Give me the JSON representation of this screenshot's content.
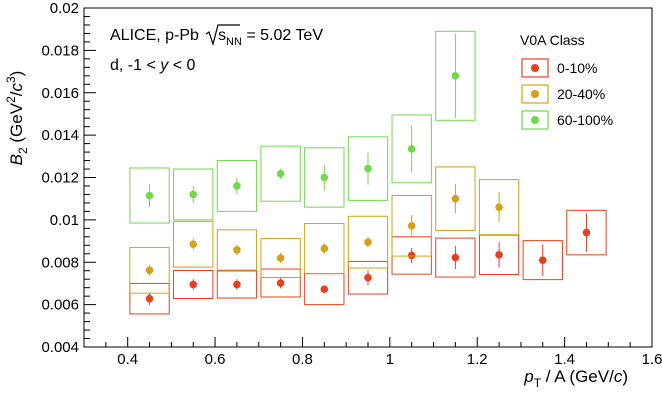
{
  "chart_data": {
    "type": "scatter",
    "title": "",
    "annotation_line1": "ALICE, p-Pb √s_NN = 5.02 TeV",
    "annotation_line2": "d, -1 < y < 0",
    "xlabel": "p_T / A (GeV/c)",
    "ylabel": "B_2 (GeV^2/c^3)",
    "xlim": [
      0.3,
      1.6
    ],
    "ylim": [
      0.004,
      0.02
    ],
    "x_ticks": [
      "0.4",
      "0.6",
      "0.8",
      "1",
      "1.2",
      "1.4",
      "1.6"
    ],
    "y_ticks": [
      "0.004",
      "0.006",
      "0.008",
      "0.01",
      "0.012",
      "0.014",
      "0.016",
      "0.018",
      "0.02"
    ],
    "grid": false,
    "legend": {
      "title": "V0A Class",
      "placement": "top-right"
    },
    "series": [
      {
        "name": "0-10%",
        "color": "#e8401c",
        "points": [
          {
            "x": 0.45,
            "y": 0.00628,
            "stat": 0.0003,
            "sys": 0.00072
          },
          {
            "x": 0.55,
            "y": 0.00695,
            "stat": 0.00025,
            "sys": 0.00066
          },
          {
            "x": 0.65,
            "y": 0.00695,
            "stat": 0.00025,
            "sys": 0.00064
          },
          {
            "x": 0.75,
            "y": 0.00702,
            "stat": 0.00025,
            "sys": 0.00066
          },
          {
            "x": 0.85,
            "y": 0.00673,
            "stat": 0.0001,
            "sys": 0.00073
          },
          {
            "x": 0.95,
            "y": 0.00727,
            "stat": 0.00035,
            "sys": 0.00077
          },
          {
            "x": 1.05,
            "y": 0.00832,
            "stat": 0.00035,
            "sys": 0.00088
          },
          {
            "x": 1.15,
            "y": 0.00822,
            "stat": 0.00055,
            "sys": 0.00092
          },
          {
            "x": 1.25,
            "y": 0.00835,
            "stat": 0.0006,
            "sys": 0.00093
          },
          {
            "x": 1.35,
            "y": 0.0081,
            "stat": 0.00075,
            "sys": 0.00092
          },
          {
            "x": 1.45,
            "y": 0.0094,
            "stat": 0.0009,
            "sys": 0.00105
          }
        ]
      },
      {
        "name": "20-40%",
        "color": "#d4a017",
        "points": [
          {
            "x": 0.45,
            "y": 0.00762,
            "stat": 0.00025,
            "sys": 0.00108
          },
          {
            "x": 0.55,
            "y": 0.00885,
            "stat": 0.00025,
            "sys": 0.00108
          },
          {
            "x": 0.65,
            "y": 0.00858,
            "stat": 0.00025,
            "sys": 0.00095
          },
          {
            "x": 0.75,
            "y": 0.0082,
            "stat": 0.00025,
            "sys": 0.00092
          },
          {
            "x": 0.85,
            "y": 0.00865,
            "stat": 0.00025,
            "sys": 0.00118
          },
          {
            "x": 0.95,
            "y": 0.00895,
            "stat": 0.00025,
            "sys": 0.00122
          },
          {
            "x": 1.05,
            "y": 0.00972,
            "stat": 0.0005,
            "sys": 0.00143
          },
          {
            "x": 1.15,
            "y": 0.011,
            "stat": 0.0007,
            "sys": 0.0015
          },
          {
            "x": 1.25,
            "y": 0.0106,
            "stat": 0.0007,
            "sys": 0.0013
          }
        ]
      },
      {
        "name": "60-100%",
        "color": "#6fd94c",
        "points": [
          {
            "x": 0.45,
            "y": 0.01115,
            "stat": 0.00055,
            "sys": 0.0013
          },
          {
            "x": 0.55,
            "y": 0.0112,
            "stat": 0.0004,
            "sys": 0.0012
          },
          {
            "x": 0.65,
            "y": 0.0116,
            "stat": 0.0004,
            "sys": 0.0012
          },
          {
            "x": 0.75,
            "y": 0.01218,
            "stat": 0.00025,
            "sys": 0.0013
          },
          {
            "x": 0.85,
            "y": 0.012,
            "stat": 0.0006,
            "sys": 0.0014
          },
          {
            "x": 0.95,
            "y": 0.01242,
            "stat": 0.00075,
            "sys": 0.0015
          },
          {
            "x": 1.05,
            "y": 0.01335,
            "stat": 0.0011,
            "sys": 0.0016
          },
          {
            "x": 1.15,
            "y": 0.0168,
            "stat": 0.002,
            "sys": 0.0021
          }
        ]
      }
    ]
  }
}
